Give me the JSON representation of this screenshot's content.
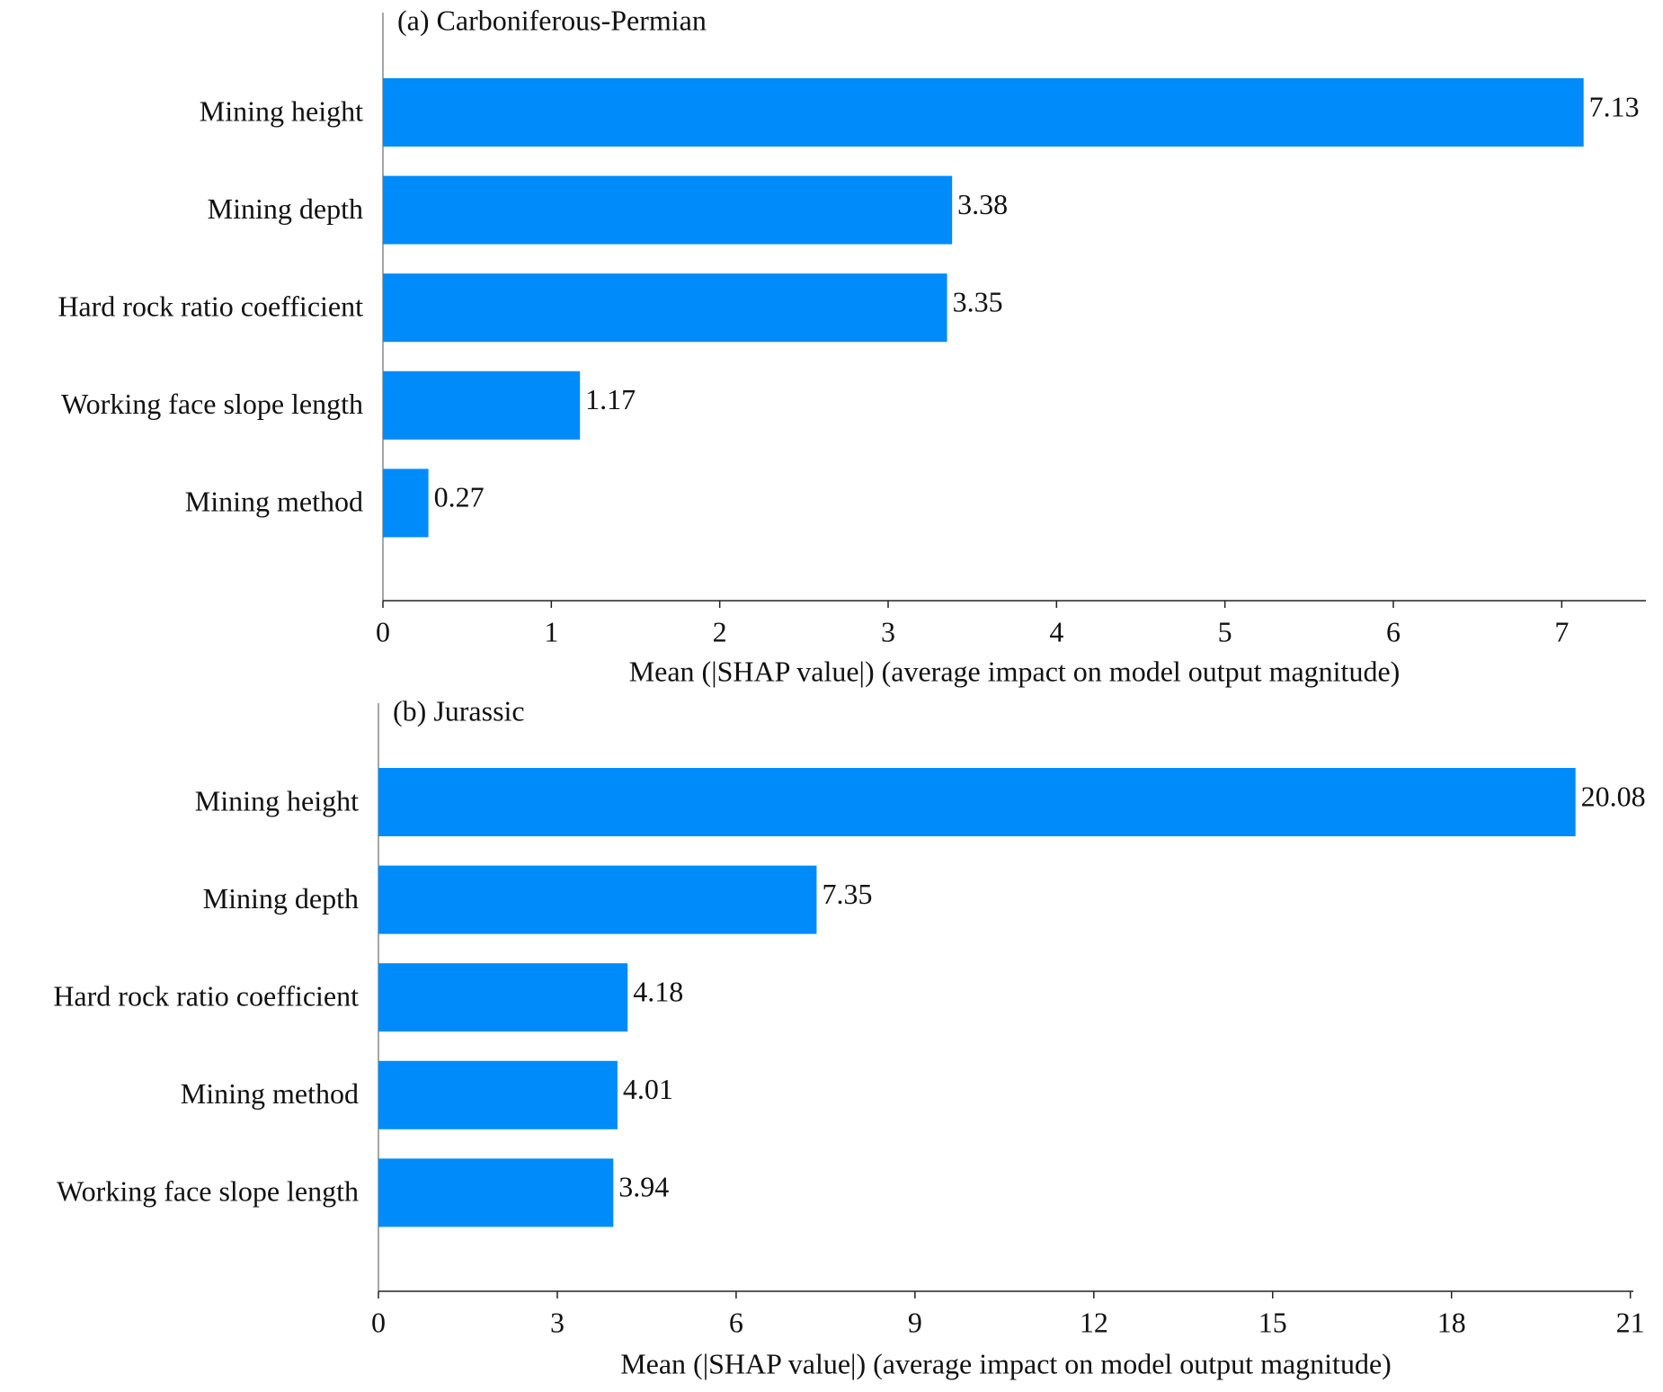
{
  "chart_data": [
    {
      "type": "bar",
      "orientation": "horizontal",
      "title": "(a) Carboniferous-Permian",
      "categories": [
        "Mining height",
        "Mining depth",
        "Hard rock ratio coefficient",
        "Working face slope length",
        "Mining method"
      ],
      "values": [
        7.13,
        3.38,
        3.35,
        1.17,
        0.27
      ],
      "color": "#008bfb",
      "xlim": [
        0,
        7.5
      ],
      "xticks": [
        0,
        1,
        2,
        3,
        4,
        5,
        6,
        7
      ],
      "xlabel": "Mean (|SHAP value|) (average impact on model output magnitude)"
    },
    {
      "type": "bar",
      "orientation": "horizontal",
      "title": "(b) Jurassic",
      "categories": [
        "Mining height",
        "Mining depth",
        "Hard rock ratio coefficient",
        "Mining method",
        "Working face slope length"
      ],
      "values": [
        20.08,
        7.35,
        4.18,
        4.01,
        3.94
      ],
      "color": "#008bfb",
      "xlim": [
        0,
        21.05
      ],
      "xticks": [
        0,
        3,
        6,
        9,
        12,
        15,
        18,
        21
      ],
      "xlabel": "Mean (|SHAP value|) (average impact on model output magnitude)"
    }
  ]
}
